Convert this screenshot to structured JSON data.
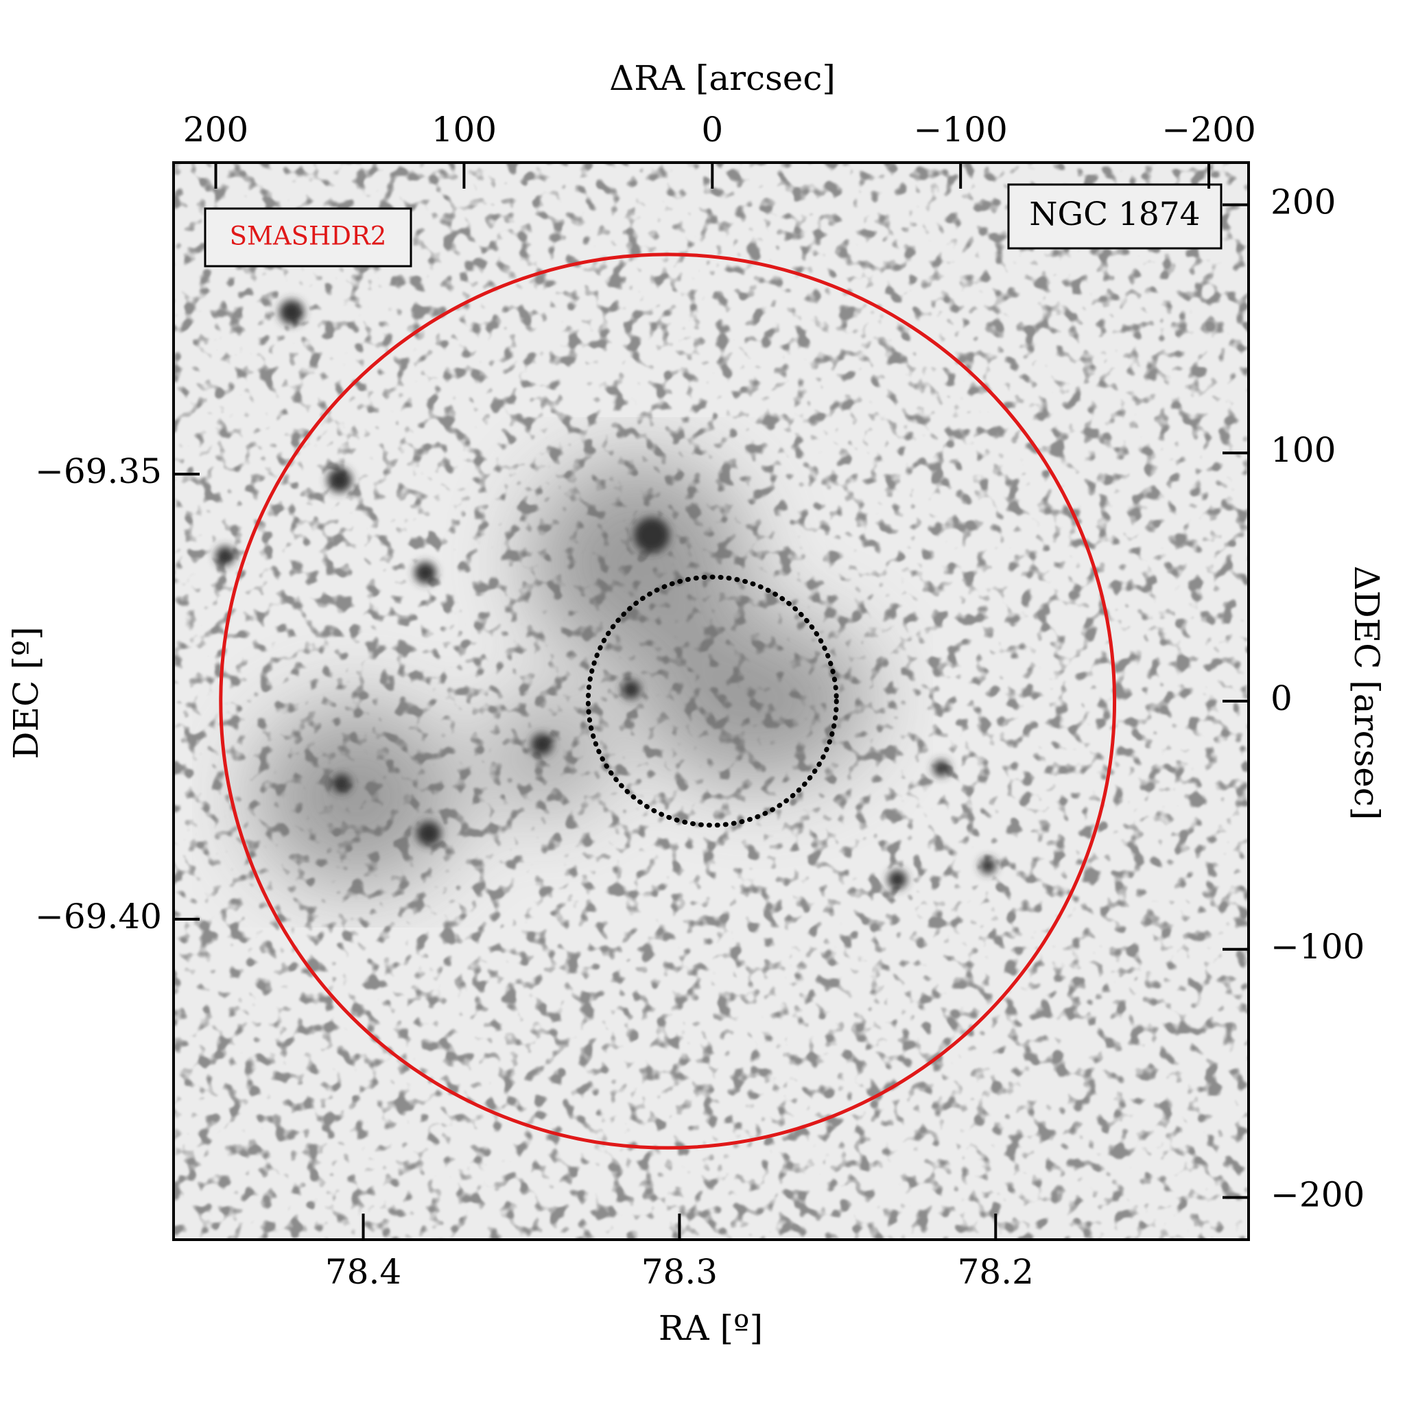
{
  "chart_data": {
    "type": "image",
    "xlabel": "RA [º]",
    "ylabel": "DEC [º]",
    "x2label": "ΔRA [arcsec]",
    "y2label": "ΔDEC [arcsec]",
    "xlim": [
      78.46,
      78.12
    ],
    "xticks": [
      78.4,
      78.3,
      78.2
    ],
    "ylim": [
      -69.436,
      -69.315
    ],
    "yticks": [
      {
        "value": -69.4,
        "label": "−69.40"
      },
      {
        "value": -69.35,
        "label": "−69.35"
      }
    ],
    "x2lim": [
      217,
      -216
    ],
    "x2ticks": [
      200,
      100,
      0,
      {
        "value": -100,
        "label": "−100"
      },
      {
        "value": -200,
        "label": "−200"
      }
    ],
    "y2lim": [
      -217,
      217
    ],
    "y2ticks": [
      {
        "value": -200,
        "label": "−200"
      },
      {
        "value": -100,
        "label": "−100"
      },
      0,
      100,
      200
    ],
    "circles": [
      {
        "x": 18,
        "y": 0,
        "r": 180,
        "color": "#e01818",
        "style": "solid"
      },
      {
        "x": 0,
        "y": 0,
        "r": 50,
        "color": "#000000",
        "style": "dotted"
      }
    ],
    "annotations": [
      {
        "text": "SMASHDR2",
        "color": "#e01818"
      },
      {
        "text": "NGC 1874",
        "color": "#000000"
      }
    ]
  }
}
